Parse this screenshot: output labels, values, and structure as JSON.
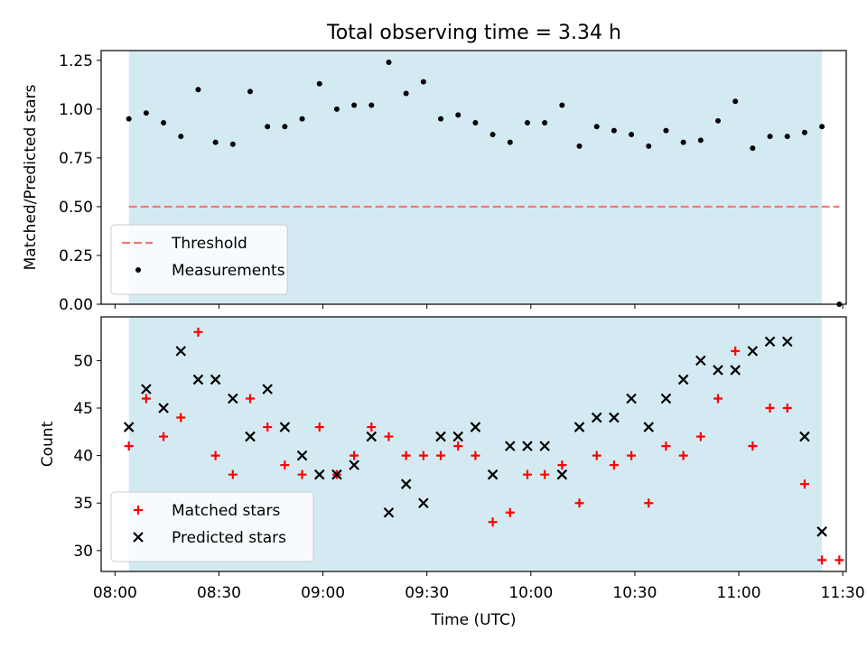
{
  "title": "Total observing time = 3.34 h",
  "chart_data": [
    {
      "type": "scatter",
      "panel": "top",
      "ylabel": "Matched/Predicted stars",
      "ylim": [
        0,
        1.3
      ],
      "yticks": [
        0.0,
        0.25,
        0.5,
        0.75,
        1.0,
        1.25
      ],
      "ytick_labels": [
        "0.00",
        "0.25",
        "0.50",
        "0.75",
        "1.00",
        "1.25"
      ],
      "xlim": [
        "07:56",
        "11:31"
      ],
      "shaded_span": [
        "08:04",
        "11:24"
      ],
      "shade_color": "#add8e6",
      "legend_position": "lower-left",
      "threshold": {
        "name": "Threshold",
        "value": 0.5,
        "x_range": [
          "08:04",
          "11:29"
        ],
        "color": "#f07878",
        "style": "dashed"
      },
      "series": [
        {
          "name": "Measurements",
          "color": "#000000",
          "marker": "dot",
          "points": [
            [
              "08:04",
              0.95
            ],
            [
              "08:09",
              0.98
            ],
            [
              "08:14",
              0.93
            ],
            [
              "08:19",
              0.86
            ],
            [
              "08:24",
              1.1
            ],
            [
              "08:29",
              0.83
            ],
            [
              "08:34",
              0.82
            ],
            [
              "08:39",
              1.09
            ],
            [
              "08:44",
              0.91
            ],
            [
              "08:49",
              0.91
            ],
            [
              "08:54",
              0.95
            ],
            [
              "08:59",
              1.13
            ],
            [
              "09:04",
              1.0
            ],
            [
              "09:09",
              1.02
            ],
            [
              "09:14",
              1.02
            ],
            [
              "09:19",
              1.24
            ],
            [
              "09:24",
              1.08
            ],
            [
              "09:29",
              1.14
            ],
            [
              "09:34",
              0.95
            ],
            [
              "09:39",
              0.97
            ],
            [
              "09:44",
              0.93
            ],
            [
              "09:49",
              0.87
            ],
            [
              "09:54",
              0.83
            ],
            [
              "09:59",
              0.93
            ],
            [
              "10:04",
              0.93
            ],
            [
              "10:09",
              1.02
            ],
            [
              "10:14",
              0.81
            ],
            [
              "10:19",
              0.91
            ],
            [
              "10:24",
              0.89
            ],
            [
              "10:29",
              0.87
            ],
            [
              "10:34",
              0.81
            ],
            [
              "10:39",
              0.89
            ],
            [
              "10:44",
              0.83
            ],
            [
              "10:49",
              0.84
            ],
            [
              "10:54",
              0.94
            ],
            [
              "10:59",
              1.04
            ],
            [
              "11:04",
              0.8
            ],
            [
              "11:09",
              0.86
            ],
            [
              "11:14",
              0.86
            ],
            [
              "11:19",
              0.88
            ],
            [
              "11:24",
              0.91
            ],
            [
              "11:29",
              0.0
            ]
          ]
        }
      ]
    },
    {
      "type": "scatter",
      "panel": "bottom",
      "xlabel": "Time (UTC)",
      "ylabel": "Count",
      "ylim": [
        27.8,
        54.6
      ],
      "yticks": [
        30,
        35,
        40,
        45,
        50
      ],
      "ytick_labels": [
        "30",
        "35",
        "40",
        "45",
        "50"
      ],
      "xticks": [
        "08:00",
        "08:30",
        "09:00",
        "09:30",
        "10:00",
        "10:30",
        "11:00",
        "11:30"
      ],
      "xlim": [
        "07:56",
        "11:31"
      ],
      "shaded_span": [
        "08:04",
        "11:24"
      ],
      "shade_color": "#add8e6",
      "legend_position": "lower-left",
      "series": [
        {
          "name": "Matched stars",
          "color": "#ff0000",
          "marker": "plus",
          "points": [
            [
              "08:04",
              41
            ],
            [
              "08:09",
              46
            ],
            [
              "08:14",
              42
            ],
            [
              "08:19",
              44
            ],
            [
              "08:24",
              53
            ],
            [
              "08:29",
              40
            ],
            [
              "08:34",
              38
            ],
            [
              "08:39",
              46
            ],
            [
              "08:44",
              43
            ],
            [
              "08:49",
              39
            ],
            [
              "08:54",
              38
            ],
            [
              "08:59",
              43
            ],
            [
              "09:04",
              38
            ],
            [
              "09:09",
              40
            ],
            [
              "09:14",
              43
            ],
            [
              "09:19",
              42
            ],
            [
              "09:24",
              40
            ],
            [
              "09:29",
              40
            ],
            [
              "09:34",
              40
            ],
            [
              "09:39",
              41
            ],
            [
              "09:44",
              40
            ],
            [
              "09:49",
              33
            ],
            [
              "09:54",
              34
            ],
            [
              "09:59",
              38
            ],
            [
              "10:04",
              38
            ],
            [
              "10:09",
              39
            ],
            [
              "10:14",
              35
            ],
            [
              "10:19",
              40
            ],
            [
              "10:24",
              39
            ],
            [
              "10:29",
              40
            ],
            [
              "10:34",
              35
            ],
            [
              "10:39",
              41
            ],
            [
              "10:44",
              40
            ],
            [
              "10:49",
              42
            ],
            [
              "10:54",
              46
            ],
            [
              "10:59",
              51
            ],
            [
              "11:04",
              41
            ],
            [
              "11:09",
              45
            ],
            [
              "11:14",
              45
            ],
            [
              "11:19",
              37
            ],
            [
              "11:24",
              29
            ],
            [
              "11:29",
              29
            ]
          ]
        },
        {
          "name": "Predicted stars",
          "color": "#000000",
          "marker": "x",
          "points": [
            [
              "08:04",
              43
            ],
            [
              "08:09",
              47
            ],
            [
              "08:14",
              45
            ],
            [
              "08:19",
              51
            ],
            [
              "08:24",
              48
            ],
            [
              "08:29",
              48
            ],
            [
              "08:34",
              46
            ],
            [
              "08:39",
              42
            ],
            [
              "08:44",
              47
            ],
            [
              "08:49",
              43
            ],
            [
              "08:54",
              40
            ],
            [
              "08:59",
              38
            ],
            [
              "09:04",
              38
            ],
            [
              "09:09",
              39
            ],
            [
              "09:14",
              42
            ],
            [
              "09:19",
              34
            ],
            [
              "09:24",
              37
            ],
            [
              "09:29",
              35
            ],
            [
              "09:34",
              42
            ],
            [
              "09:39",
              42
            ],
            [
              "09:44",
              43
            ],
            [
              "09:49",
              38
            ],
            [
              "09:54",
              41
            ],
            [
              "09:59",
              41
            ],
            [
              "10:04",
              41
            ],
            [
              "10:09",
              38
            ],
            [
              "10:14",
              43
            ],
            [
              "10:19",
              44
            ],
            [
              "10:24",
              44
            ],
            [
              "10:29",
              46
            ],
            [
              "10:34",
              43
            ],
            [
              "10:39",
              46
            ],
            [
              "10:44",
              48
            ],
            [
              "10:49",
              50
            ],
            [
              "10:54",
              49
            ],
            [
              "10:59",
              49
            ],
            [
              "11:04",
              51
            ],
            [
              "11:09",
              52
            ],
            [
              "11:14",
              52
            ],
            [
              "11:19",
              42
            ],
            [
              "11:24",
              32
            ]
          ]
        }
      ]
    }
  ]
}
